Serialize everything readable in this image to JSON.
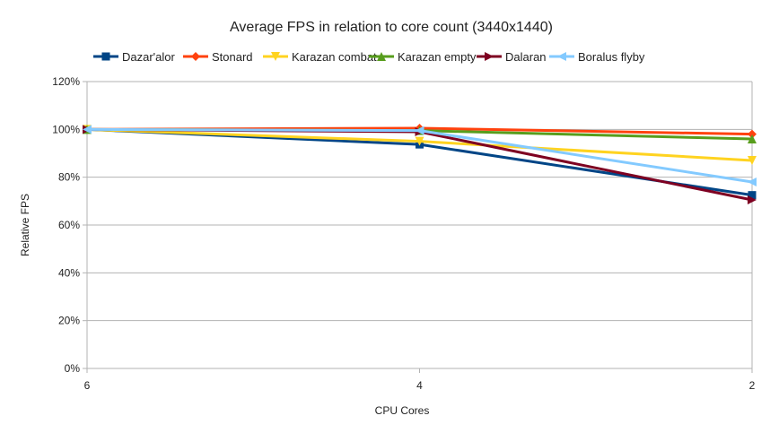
{
  "chart_data": {
    "type": "line",
    "title": "Average FPS in relation to core count (3440x1440)",
    "xlabel": "CPU Cores",
    "ylabel": "Relative FPS",
    "categories": [
      "6",
      "4",
      "2"
    ],
    "ylim": [
      0,
      120
    ],
    "yticks": [
      "0%",
      "20%",
      "40%",
      "60%",
      "80%",
      "100%",
      "120%"
    ],
    "grid": true,
    "legend_position": "top",
    "series": [
      {
        "name": "Dazar'alor",
        "color": "#004586",
        "marker": "square",
        "values": [
          100,
          93.7,
          72.5
        ]
      },
      {
        "name": "Stonard",
        "color": "#ff420e",
        "marker": "diamond",
        "values": [
          100,
          100.5,
          98
        ]
      },
      {
        "name": "Karazan combat",
        "color": "#ffd320",
        "marker": "triangle-down",
        "values": [
          100,
          95,
          87
        ]
      },
      {
        "name": "Karazan empty",
        "color": "#579d1c",
        "marker": "triangle-up",
        "values": [
          100,
          99.5,
          96
        ]
      },
      {
        "name": "Dalaran",
        "color": "#7e0021",
        "marker": "triangle-right",
        "values": [
          100,
          99,
          70.5
        ]
      },
      {
        "name": "Boralus flyby",
        "color": "#83caff",
        "marker": "triangle-left",
        "values": [
          100,
          99.5,
          78
        ]
      }
    ]
  }
}
